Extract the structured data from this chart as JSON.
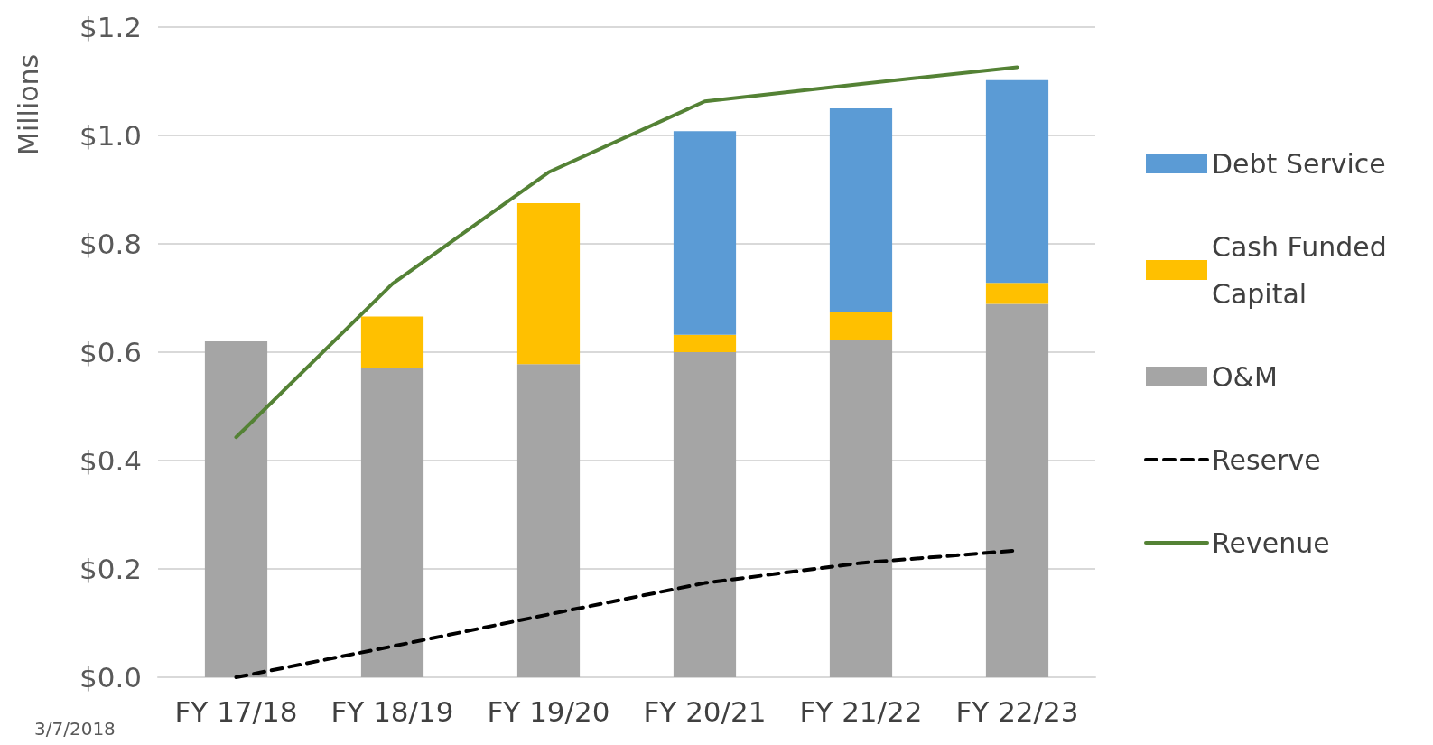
{
  "chart_data": {
    "type": "bar",
    "stacked": true,
    "ylabel": "Millions",
    "categories": [
      "FY 17/18",
      "FY 18/19",
      "FY 19/20",
      "FY 20/21",
      "FY 21/22",
      "FY 22/23"
    ],
    "series": [
      {
        "name": "O&M",
        "color": "#a5a5a5",
        "values": [
          0.62,
          0.571,
          0.578,
          0.6,
          0.622,
          0.689
        ]
      },
      {
        "name": "Cash Funded Capital",
        "color": "#ffc000",
        "values": [
          null,
          0.095,
          0.297,
          0.032,
          0.052,
          0.039
        ]
      },
      {
        "name": "Debt Service",
        "color": "#5b9bd5",
        "values": [
          null,
          null,
          null,
          0.376,
          0.376,
          0.374
        ]
      },
      {
        "name": "Reserve",
        "type": "line",
        "color": "#000000",
        "line_style": "dashed",
        "values": [
          0,
          0.057,
          0.116,
          0.174,
          0.211,
          0.234
        ]
      },
      {
        "name": "Revenue",
        "type": "line",
        "color": "#548235",
        "line_style": "solid",
        "values": [
          0.443,
          0.726,
          0.932,
          1.063,
          1.095,
          1.126
        ]
      }
    ],
    "ylim": [
      0,
      1.2
    ],
    "yticks": [
      {
        "value": 0,
        "label": "$0.0"
      },
      {
        "value": 0.2,
        "label": "$0.2"
      },
      {
        "value": 0.4,
        "label": "$0.4"
      },
      {
        "value": 0.6,
        "label": "$0.6"
      },
      {
        "value": 0.8,
        "label": "$0.8"
      },
      {
        "value": 1.0,
        "label": "$1.0"
      },
      {
        "value": 1.2,
        "label": "$1.2"
      }
    ],
    "grid": "y",
    "legend": "right",
    "marker": "none",
    "annotations": [
      "3/7/2018"
    ]
  }
}
